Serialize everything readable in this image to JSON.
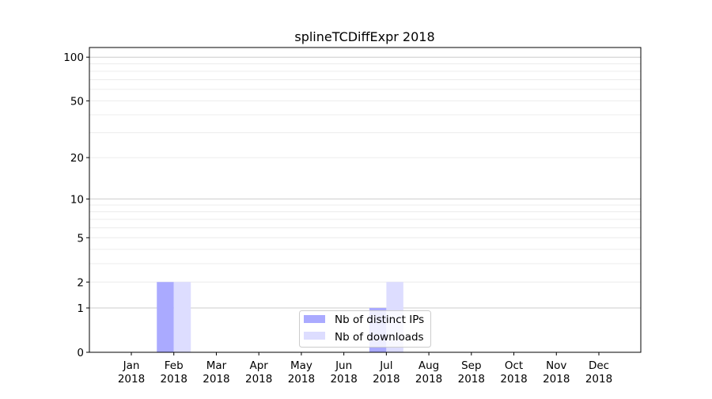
{
  "chart_data": {
    "type": "bar",
    "title": "splineTCDiffExpr 2018",
    "xlabel": "",
    "ylabel": "",
    "yscale": "log(1+y)",
    "ylim": [
      0,
      116
    ],
    "grid": true,
    "categories": [
      "Jan\n2018",
      "Feb\n2018",
      "Mar\n2018",
      "Apr\n2018",
      "May\n2018",
      "Jun\n2018",
      "Jul\n2018",
      "Aug\n2018",
      "Sep\n2018",
      "Oct\n2018",
      "Nov\n2018",
      "Dec\n2018"
    ],
    "yticks": [
      0,
      1,
      2,
      5,
      10,
      20,
      50,
      100
    ],
    "series": [
      {
        "name": "Nb of distinct IPs",
        "color": "#aaaaff",
        "values": [
          0,
          2,
          0,
          0,
          0,
          0,
          1,
          0,
          0,
          0,
          0,
          0
        ]
      },
      {
        "name": "Nb of downloads",
        "color": "#ddddff",
        "values": [
          0,
          2,
          0,
          0,
          0,
          0,
          2,
          0,
          0,
          0,
          0,
          0
        ]
      }
    ],
    "legend_position": "bottom-center"
  }
}
